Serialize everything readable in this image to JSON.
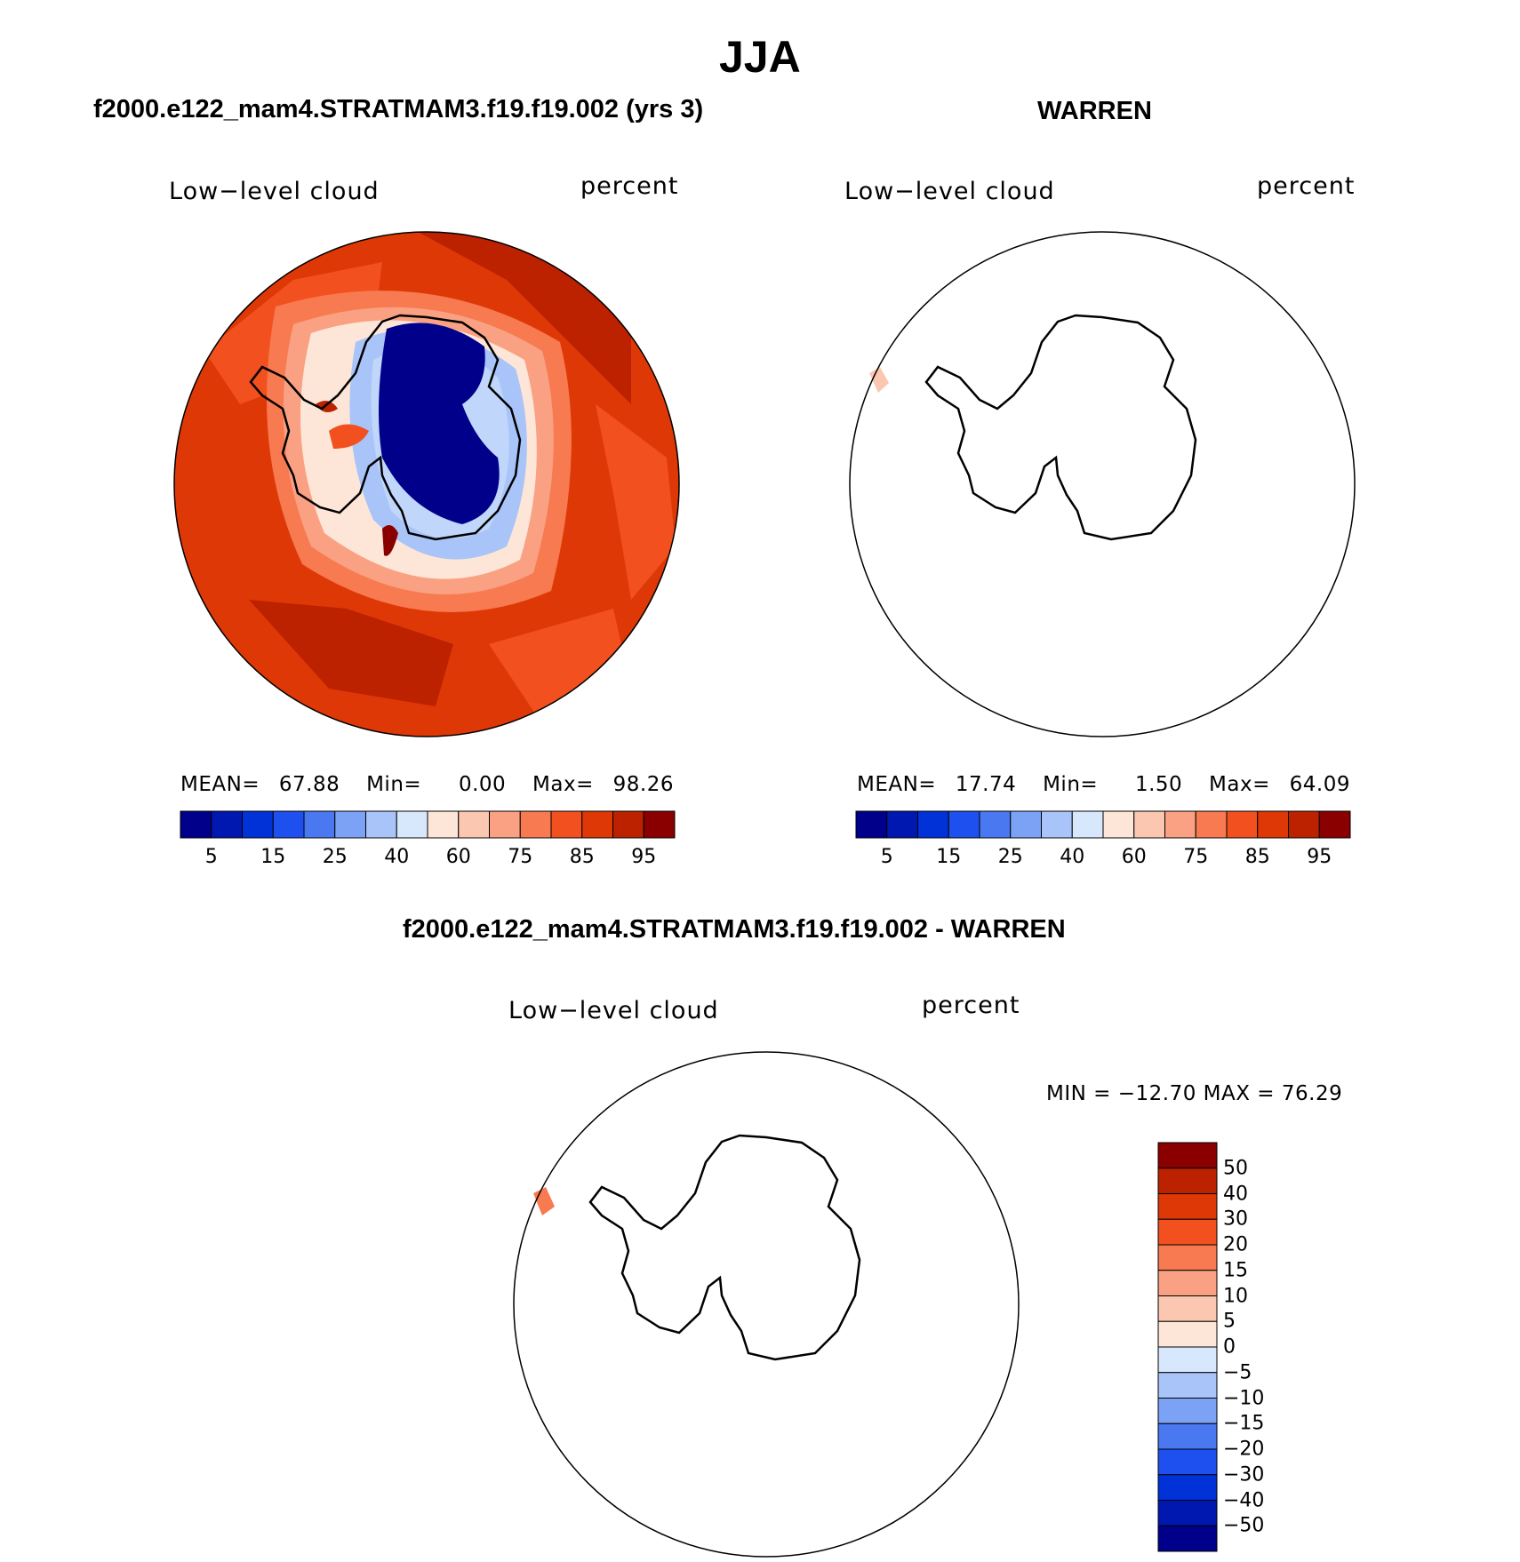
{
  "title": "JJA",
  "panels": [
    {
      "case_title": "f2000.e122_mam4.STRATMAM3.f19.f19.002 (yrs 3)",
      "variable": "Low−level cloud",
      "units": "percent",
      "stats": {
        "mean_label": "MEAN=",
        "mean": "67.88",
        "min_label": "Min=",
        "min": "0.00",
        "max_label": "Max=",
        "max": "98.26"
      },
      "colorbar": {
        "colors": [
          "#00008b",
          "#0018b0",
          "#0032d8",
          "#1e50f0",
          "#4a78f0",
          "#7ca2f5",
          "#a9c4f8",
          "#d8e8fc",
          "#fde6d8",
          "#fbc7b0",
          "#f9a182",
          "#f77a50",
          "#f2501f",
          "#df3807",
          "#bc2200",
          "#8a0000"
        ],
        "tick_labels": [
          "5",
          "15",
          "25",
          "40",
          "60",
          "75",
          "85",
          "95"
        ]
      }
    },
    {
      "case_title": "WARREN",
      "variable": "Low−level cloud",
      "units": "percent",
      "stats": {
        "mean_label": "MEAN=",
        "mean": "17.74",
        "min_label": "Min=",
        "min": "1.50",
        "max_label": "Max=",
        "max": "64.09"
      },
      "colorbar": {
        "colors": [
          "#00008b",
          "#0018b0",
          "#0032d8",
          "#1e50f0",
          "#4a78f0",
          "#7ca2f5",
          "#a9c4f8",
          "#d8e8fc",
          "#fde6d8",
          "#fbc7b0",
          "#f9a182",
          "#f77a50",
          "#f2501f",
          "#df3807",
          "#bc2200",
          "#8a0000"
        ],
        "tick_labels": [
          "5",
          "15",
          "25",
          "40",
          "60",
          "75",
          "85",
          "95"
        ]
      }
    }
  ],
  "diff_panel": {
    "case_title": "f2000.e122_mam4.STRATMAM3.f19.f19.002 - WARREN",
    "variable": "Low−level cloud",
    "units": "percent",
    "minmax_text": "MIN = −12.70  MAX =   76.29",
    "colorbar": {
      "colors_top_to_bottom": [
        "#8a0000",
        "#bc2200",
        "#df3807",
        "#f2501f",
        "#f77a50",
        "#f9a182",
        "#fbc7b0",
        "#fde6d8",
        "#d8e8fc",
        "#a9c4f8",
        "#7ca2f5",
        "#4a78f0",
        "#1e50f0",
        "#0032d8",
        "#0018b0",
        "#00008b"
      ],
      "tick_labels": [
        "50",
        "40",
        "30",
        "20",
        "15",
        "10",
        "5",
        "0",
        "−5",
        "−10",
        "−15",
        "−20",
        "−30",
        "−40",
        "−50"
      ]
    }
  }
}
